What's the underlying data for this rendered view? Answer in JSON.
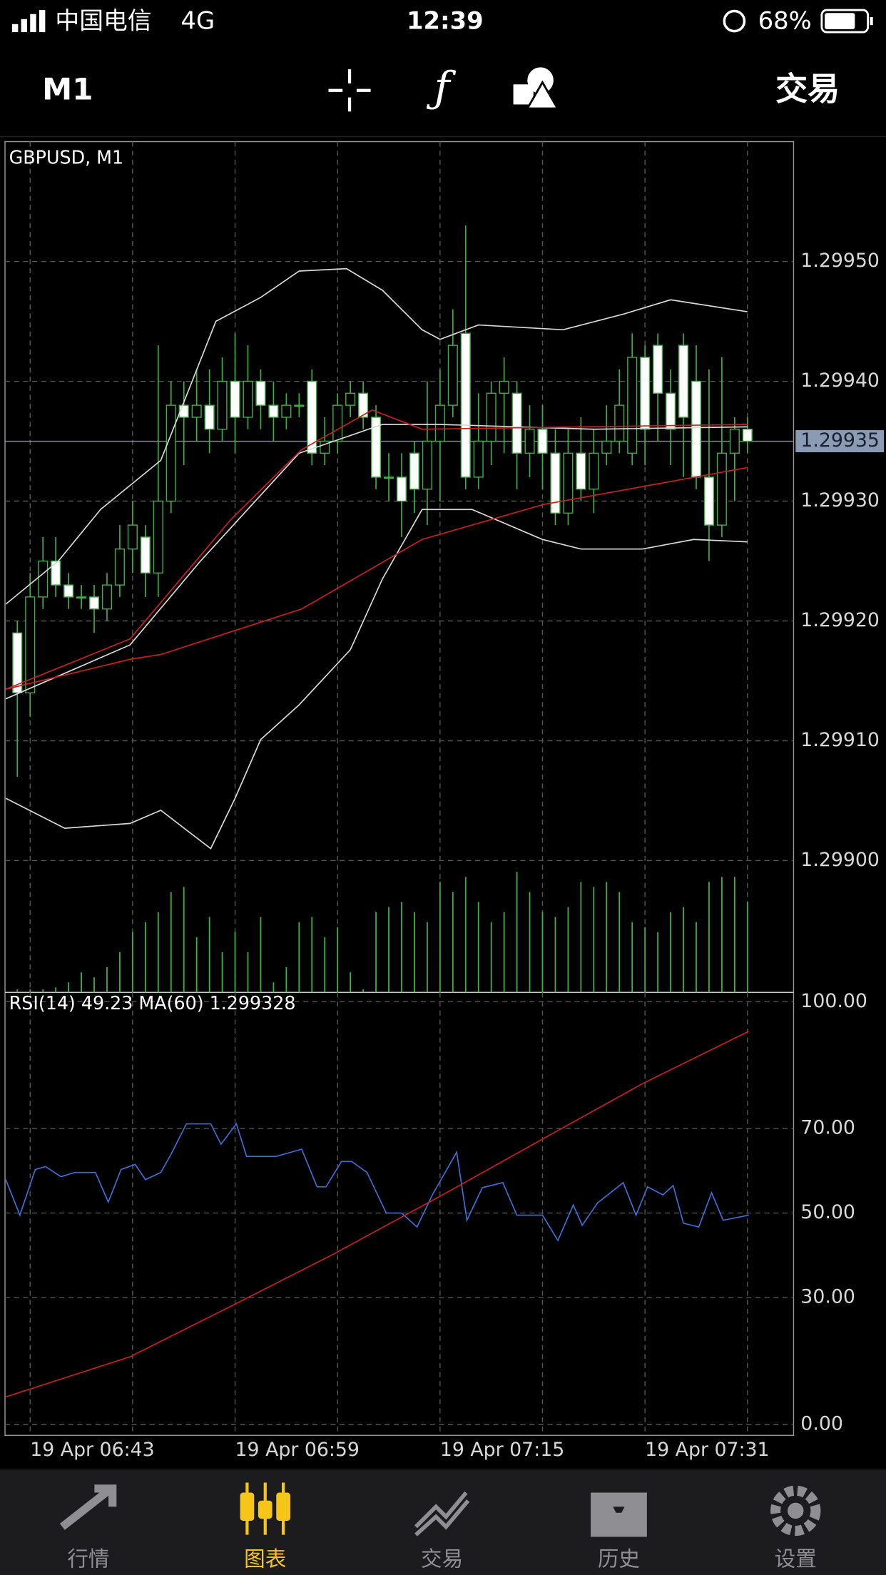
{
  "status_bar": {
    "carrier": "中国电信",
    "network": "4G",
    "time": "12:39",
    "battery": "68%"
  },
  "toolbar": {
    "timeframe": "M1",
    "trade": "交易"
  },
  "chart_data": [
    {
      "type": "candlestick",
      "title": "GBPUSD, M1",
      "open": [
        1.29919,
        1.29914,
        1.29922,
        1.29925,
        1.29923,
        1.29922,
        1.29922,
        1.29921,
        1.29923,
        1.29926,
        1.29927,
        1.29924,
        1.2993,
        1.29938,
        1.29937,
        1.29938,
        1.29936,
        1.2994,
        1.29937,
        1.2994,
        1.29938,
        1.29937,
        1.29938,
        1.2994,
        1.29934,
        1.29935,
        1.29938,
        1.29939,
        1.29937,
        1.29932,
        1.29932,
        1.29934,
        1.29931,
        1.29935,
        1.29938,
        1.29944,
        1.29932,
        1.29935,
        1.29939,
        1.29939,
        1.29934,
        1.29936,
        1.29934,
        1.29929,
        1.29934,
        1.29931,
        1.29934,
        1.29935,
        1.29934,
        1.29942,
        1.29943,
        1.29939,
        1.29943,
        1.2994,
        1.29932,
        1.29928,
        1.29934,
        1.29936
      ],
      "high": [
        1.2992,
        1.29924,
        1.29927,
        1.29927,
        1.29924,
        1.29923,
        1.29923,
        1.29924,
        1.29928,
        1.2993,
        1.29928,
        1.29943,
        1.2994,
        1.2994,
        1.29941,
        1.29941,
        1.29942,
        1.29944,
        1.29943,
        1.29941,
        1.2994,
        1.29939,
        1.29939,
        1.29941,
        1.29937,
        1.29939,
        1.2994,
        1.2994,
        1.29938,
        1.29934,
        1.29934,
        1.29935,
        1.2994,
        1.29941,
        1.29946,
        1.29953,
        1.29939,
        1.2994,
        1.29942,
        1.2994,
        1.29938,
        1.29938,
        1.29936,
        1.29936,
        1.29937,
        1.29936,
        1.29938,
        1.29941,
        1.29944,
        1.29943,
        1.29944,
        1.29941,
        1.29944,
        1.29943,
        1.29941,
        1.29942,
        1.29937,
        1.29937
      ],
      "low": [
        1.29907,
        1.29912,
        1.29921,
        1.29922,
        1.29921,
        1.29921,
        1.29919,
        1.2992,
        1.29922,
        1.29924,
        1.29922,
        1.29922,
        1.29929,
        1.29933,
        1.29935,
        1.29934,
        1.29935,
        1.29934,
        1.29936,
        1.29936,
        1.29935,
        1.29936,
        1.29937,
        1.29933,
        1.29933,
        1.29934,
        1.29937,
        1.29936,
        1.29931,
        1.2993,
        1.29927,
        1.29929,
        1.29928,
        1.2993,
        1.29937,
        1.29931,
        1.29931,
        1.29933,
        1.29934,
        1.29931,
        1.29932,
        1.29931,
        1.29928,
        1.29928,
        1.2993,
        1.29929,
        1.29933,
        1.29934,
        1.29933,
        1.29933,
        1.29935,
        1.29933,
        1.29932,
        1.29931,
        1.29925,
        1.29927,
        1.2993,
        1.29934
      ],
      "close": [
        1.29914,
        1.29922,
        1.29925,
        1.29923,
        1.29922,
        1.29922,
        1.29921,
        1.29923,
        1.29926,
        1.29928,
        1.29924,
        1.2993,
        1.29938,
        1.29937,
        1.29938,
        1.29936,
        1.2994,
        1.29937,
        1.2994,
        1.29938,
        1.29937,
        1.29938,
        1.29938,
        1.29934,
        1.29935,
        1.29938,
        1.29939,
        1.29937,
        1.29932,
        1.29932,
        1.2993,
        1.29931,
        1.29935,
        1.29938,
        1.29943,
        1.29932,
        1.29935,
        1.29939,
        1.2994,
        1.29934,
        1.29936,
        1.29934,
        1.29929,
        1.29934,
        1.29931,
        1.29934,
        1.29935,
        1.29938,
        1.29942,
        1.29936,
        1.29939,
        1.29936,
        1.29937,
        1.29932,
        1.29928,
        1.29934,
        1.29936,
        1.29935
      ],
      "volume": [
        3,
        3,
        3,
        5,
        10,
        20,
        15,
        25,
        40,
        60,
        70,
        80,
        100,
        105,
        55,
        75,
        40,
        60,
        40,
        75,
        10,
        25,
        70,
        75,
        55,
        65,
        20,
        3,
        80,
        85,
        90,
        80,
        70,
        110,
        100,
        115,
        90,
        70,
        80,
        120,
        100,
        80,
        75,
        85,
        110,
        105,
        110,
        100,
        70,
        65,
        60,
        80,
        85,
        70,
        110,
        115,
        115,
        90
      ],
      "bull_color": "#3cb043",
      "bear_color": "#ffffff",
      "volume_color": "#3cb043",
      "current_price": 1.29935,
      "lines": [
        {
          "color": "#d8d8d8",
          "x": [
            -0.9,
            3.2,
            6.5,
            11.2,
            15.5,
            19,
            22,
            25.7,
            28.5,
            31.6,
            33,
            36,
            42.6,
            47.3,
            51,
            57
          ],
          "values": [
            1.299214,
            1.29925,
            1.299293,
            1.299334,
            1.29945,
            1.29947,
            1.299492,
            1.299494,
            1.299476,
            1.299443,
            1.299435,
            1.299447,
            1.299443,
            1.299456,
            1.299468,
            1.299458
          ]
        },
        {
          "color": "#d8d8d8",
          "x": [
            -0.9,
            8.8,
            14.3,
            22,
            28.5,
            33,
            45,
            57
          ],
          "values": [
            1.299135,
            1.29918,
            1.29925,
            1.29934,
            1.299364,
            1.299364,
            1.29936,
            1.299362
          ]
        },
        {
          "color": "#d8d8d8",
          "x": [
            -0.9,
            3.7,
            8.8,
            11.2,
            15.1,
            17,
            19,
            22,
            26,
            28.5,
            31.6,
            35.5,
            41,
            44,
            48.8,
            52.8,
            57
          ],
          "values": [
            1.299052,
            1.299027,
            1.299031,
            1.299042,
            1.29901,
            1.299052,
            1.299101,
            1.29913,
            1.299176,
            1.299235,
            1.299293,
            1.299293,
            1.299268,
            1.29926,
            1.29926,
            1.299268,
            1.299266
          ]
        },
        {
          "color": "#c8201e",
          "x": [
            -0.9,
            8.8,
            16.7,
            22.2,
            27.7,
            31.6,
            57
          ],
          "values": [
            1.299143,
            1.299185,
            1.299285,
            1.299343,
            1.299376,
            1.29936,
            1.299364
          ]
        },
        {
          "color": "#c8201e",
          "x": [
            -0.9,
            8.8,
            11.2,
            22.2,
            31.6,
            41,
            57
          ],
          "values": [
            1.299143,
            1.299168,
            1.299172,
            1.29921,
            1.299268,
            1.299297,
            1.299328
          ]
        }
      ],
      "xlim": [
        -0.96,
        60.6
      ],
      "ylim": [
        1.29889,
        1.2996
      ],
      "yticks": [
        {
          "value": 1.2995,
          "label": "1.29950"
        },
        {
          "value": 1.2994,
          "label": "1.29940"
        },
        {
          "value": 1.2993,
          "label": "1.29930"
        },
        {
          "value": 1.2992,
          "label": "1.29920"
        },
        {
          "value": 1.2991,
          "label": "1.29910"
        },
        {
          "value": 1.299,
          "label": "1.29900"
        }
      ],
      "grid": true
    },
    {
      "type": "line",
      "title": "RSI(14) 49.23 MA(60) 1.299328",
      "series": [
        {
          "color": "#3a6fd8",
          "x": [
            -0.9,
            0.2,
            1.4,
            2.2,
            3.4,
            4.5,
            6.1,
            7.1,
            8.1,
            9.2,
            10,
            11.2,
            12,
            13.2,
            15.1,
            15.9,
            17.1,
            17.9,
            20.2,
            22.2,
            23.4,
            24.1,
            25.3,
            26.1,
            27.3,
            28.8,
            30,
            31.2,
            32.4,
            34.3,
            35.1,
            36.3,
            37.9,
            39,
            41,
            42.2,
            43.4,
            44.1,
            45.3,
            47.3,
            48.3,
            49.2,
            50.4,
            51.2,
            52,
            53.2,
            54.2,
            55.1,
            57.1
          ],
          "values": [
            57.9,
            49.5,
            60.3,
            61,
            58.6,
            59.6,
            59.6,
            52.6,
            60.3,
            61.5,
            57.9,
            59.6,
            63.9,
            71.1,
            71.1,
            66.3,
            71.1,
            63.4,
            63.4,
            65.1,
            56.2,
            56.2,
            62.2,
            62.2,
            59.6,
            50,
            50,
            46.7,
            54.3,
            64.4,
            48.3,
            56,
            57.2,
            49.5,
            49.5,
            43.5,
            51.9,
            47.1,
            52.4,
            57.2,
            49.5,
            56.2,
            54.3,
            56.5,
            47.6,
            46.7,
            54.8,
            48.3,
            49.5
          ]
        },
        {
          "color": "#c8201e",
          "x": [
            -0.9,
            8.8,
            16.7,
            24.5,
            33.2,
            41,
            48.8,
            57.1
          ],
          "values": [
            6.5,
            16,
            28,
            40,
            54.3,
            67.5,
            80.6,
            93
          ]
        }
      ],
      "xlim": [
        -0.96,
        60.6
      ],
      "xticks": [
        {
          "value": 1,
          "label": "19 Apr 06:43"
        },
        {
          "value": 17,
          "label": "19 Apr 06:59"
        },
        {
          "value": 33,
          "label": "19 Apr 07:15"
        },
        {
          "value": 49,
          "label": "19 Apr 07:31"
        }
      ],
      "ylim": [
        -2.6,
        102.2
      ],
      "yticks": [
        {
          "value": 100,
          "label": "100.00"
        },
        {
          "value": 70,
          "label": "70.00"
        },
        {
          "value": 50,
          "label": "50.00"
        },
        {
          "value": 30,
          "label": "30.00"
        },
        {
          "value": 0,
          "label": "0.00"
        }
      ],
      "grid": true
    }
  ],
  "tabs": [
    "行情",
    "图表",
    "交易",
    "历史",
    "设置"
  ],
  "active_tab": 1
}
